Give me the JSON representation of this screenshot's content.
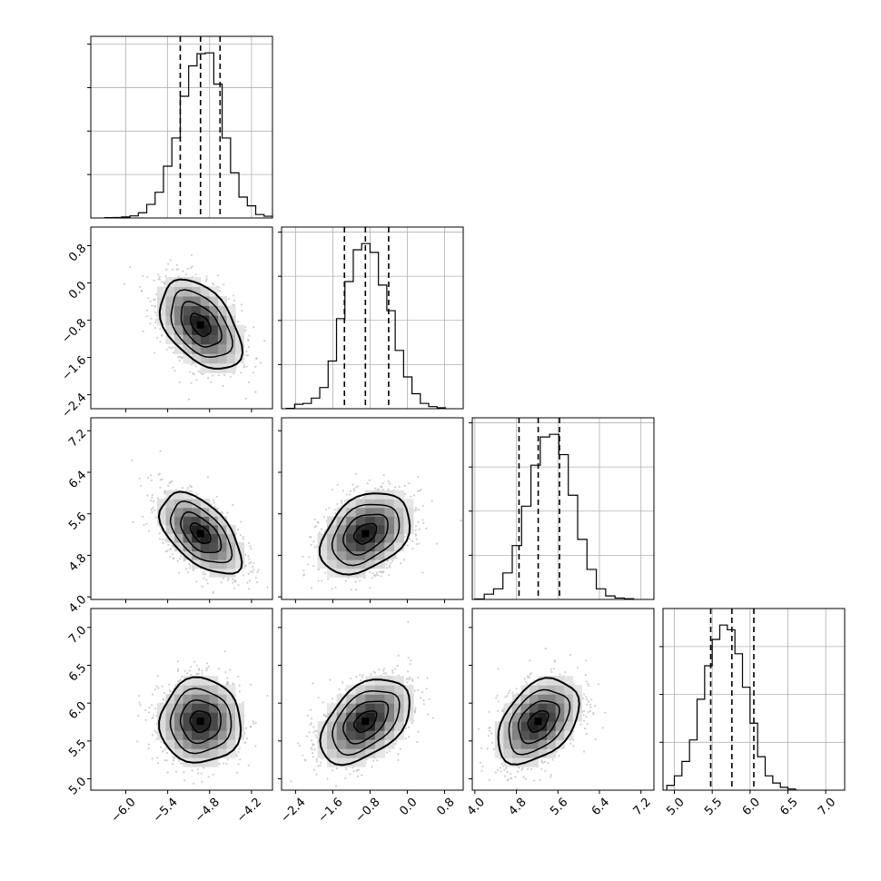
{
  "chart_data": {
    "type": "corner",
    "title": "",
    "grid": true,
    "parameters": [
      {
        "xlim": [
          -6.5,
          -3.9
        ],
        "ticks": [
          "−6.0",
          "−5.4",
          "−4.8",
          "−4.2"
        ],
        "tick_values": [
          -6.0,
          -5.4,
          -4.8,
          -4.2
        ],
        "quantiles": [
          -5.22,
          -4.93,
          -4.65
        ],
        "hist": {
          "edges_start": -6.3,
          "bin_width": 0.12,
          "counts": [
            2,
            3,
            6,
            12,
            30,
            78,
            148,
            298,
            460,
            700,
            875,
            945,
            950,
            770,
            460,
            260,
            120,
            70,
            20,
            10
          ]
        }
      },
      {
        "xlim": [
          -2.7,
          1.2
        ],
        "ticks": [
          "−2.4",
          "−1.6",
          "−0.8",
          "0.0",
          "0.8"
        ],
        "tick_values": [
          -2.4,
          -1.6,
          -0.8,
          0.0,
          0.8
        ],
        "quantiles": [
          -1.35,
          -0.9,
          -0.4
        ],
        "hist": {
          "edges_start": -2.6,
          "bin_width": 0.18,
          "counts": [
            2,
            25,
            30,
            60,
            120,
            270,
            510,
            720,
            900,
            935,
            885,
            700,
            555,
            330,
            180,
            85,
            30,
            12,
            5
          ]
        }
      },
      {
        "xlim": [
          3.95,
          7.45
        ],
        "ticks": [
          "4.0",
          "4.8",
          "5.6",
          "6.4",
          "7.2"
        ],
        "tick_values": [
          4.0,
          4.8,
          5.6,
          6.4,
          7.2
        ],
        "quantiles": [
          4.85,
          5.22,
          5.63
        ],
        "hist": {
          "edges_start": 4.0,
          "bin_width": 0.18,
          "counts": [
            3,
            30,
            60,
            150,
            305,
            528,
            760,
            920,
            935,
            820,
            590,
            340,
            170,
            60,
            20,
            8,
            4
          ]
        }
      },
      {
        "xlim": [
          4.85,
          7.25
        ],
        "ticks": [
          "5.0",
          "5.5",
          "6.0",
          "6.5",
          "7.0"
        ],
        "tick_values": [
          5.0,
          5.5,
          6.0,
          6.5,
          7.0
        ],
        "quantiles": [
          5.48,
          5.76,
          6.05
        ],
        "hist": {
          "edges_start": 4.9,
          "bin_width": 0.1,
          "counts": [
            20,
            60,
            120,
            210,
            380,
            520,
            630,
            690,
            670,
            570,
            430,
            280,
            140,
            60,
            30,
            12,
            5
          ]
        }
      }
    ],
    "y_axes": [
      {
        "row": 1,
        "ylim": [
          -2.7,
          1.2
        ],
        "ticks": [
          "−2.4",
          "−1.6",
          "−0.8",
          "0.0",
          "0.8"
        ],
        "tick_values": [
          -2.4,
          -1.6,
          -0.8,
          0.0,
          0.8
        ]
      },
      {
        "row": 2,
        "ylim": [
          3.95,
          7.45
        ],
        "ticks": [
          "4.0",
          "4.8",
          "5.6",
          "6.4",
          "7.2"
        ],
        "tick_values": [
          4.0,
          4.8,
          5.6,
          6.4,
          7.2
        ]
      },
      {
        "row": 3,
        "ylim": [
          4.85,
          7.25
        ],
        "ticks": [
          "5.0",
          "5.5",
          "6.0",
          "6.5",
          "7.0"
        ],
        "tick_values": [
          5.0,
          5.5,
          6.0,
          6.5,
          7.0
        ]
      }
    ],
    "pairs": [
      {
        "row": 1,
        "col": 0,
        "mean": [
          -4.93,
          -0.9
        ],
        "sd": [
          0.29,
          0.48
        ],
        "rho": -0.45
      },
      {
        "row": 2,
        "col": 0,
        "mean": [
          -4.93,
          5.22
        ],
        "sd": [
          0.29,
          0.39
        ],
        "rho": -0.55
      },
      {
        "row": 2,
        "col": 1,
        "mean": [
          -0.9,
          5.22
        ],
        "sd": [
          0.48,
          0.39
        ],
        "rho": 0.35
      },
      {
        "row": 3,
        "col": 0,
        "mean": [
          -4.93,
          5.76
        ],
        "sd": [
          0.29,
          0.28
        ],
        "rho": 0.0
      },
      {
        "row": 3,
        "col": 1,
        "mean": [
          -0.9,
          5.76
        ],
        "sd": [
          0.48,
          0.28
        ],
        "rho": 0.45
      },
      {
        "row": 3,
        "col": 2,
        "mean": [
          5.22,
          5.76
        ],
        "sd": [
          0.39,
          0.28
        ],
        "rho": 0.4
      }
    ],
    "contour_levels_sigma": [
      0.5,
      1.0,
      1.5,
      2.0
    ]
  },
  "colors": {
    "hist": "#000000",
    "grid": "#b0b0b0",
    "points": "#bbbbbb",
    "contour": "#000000"
  }
}
